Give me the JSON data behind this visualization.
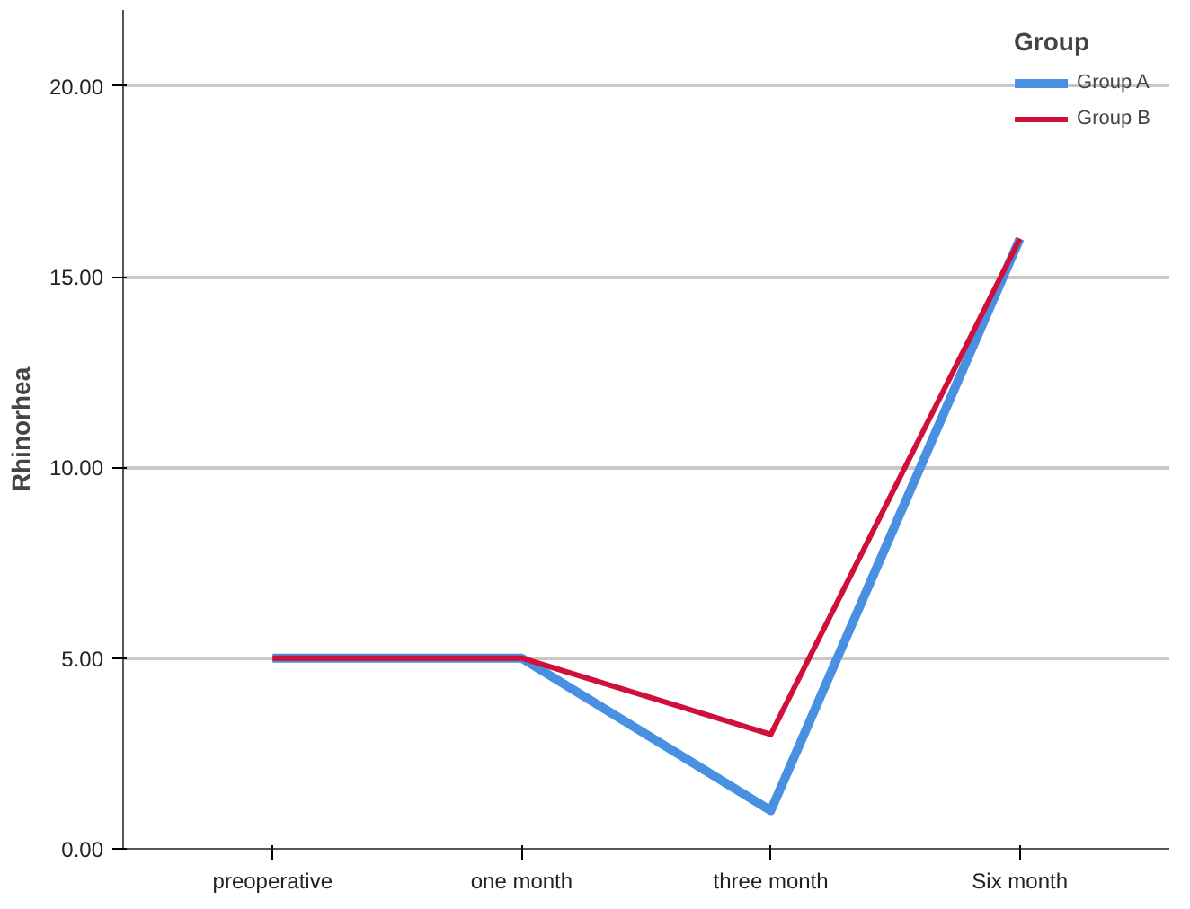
{
  "chart_data": {
    "type": "line",
    "ylabel": "Rhinorhea",
    "legend_title": "Group",
    "categories": [
      "preoperative",
      "one month",
      "three month",
      "Six month"
    ],
    "series": [
      {
        "name": "Group A",
        "color": "#4a90e2",
        "values": [
          5,
          5,
          1,
          16
        ]
      },
      {
        "name": "Group B",
        "color": "#d0103a",
        "values": [
          5,
          5,
          3,
          16
        ]
      }
    ],
    "ylim": [
      0,
      22
    ],
    "yticks": [
      {
        "value": 0,
        "label": "0.00"
      },
      {
        "value": 5,
        "label": "5.00"
      },
      {
        "value": 10,
        "label": "10.00"
      },
      {
        "value": 15,
        "label": "15.00"
      },
      {
        "value": 20,
        "label": "20.00"
      }
    ],
    "grid": "y",
    "legend": "top right",
    "marker": "none",
    "line_style": "solid"
  }
}
